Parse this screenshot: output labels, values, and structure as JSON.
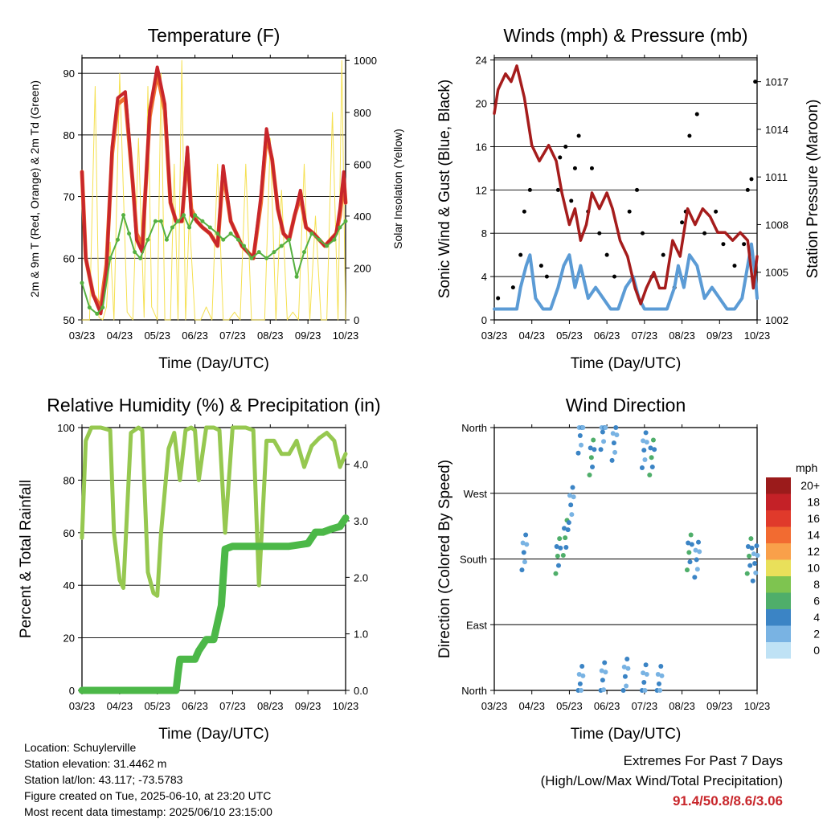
{
  "info": {
    "location": "Location: Schuylerville",
    "elevation": "Station elevation: 31.4462 m",
    "latlon": "Station lat/lon: 43.117; -73.5783",
    "created": "Figure created on Tue, 2025-06-10, at 23:20 UTC",
    "recent": "Most recent data timestamp: 2025/06/10 23:15:00"
  },
  "extremes": {
    "title": "Extremes For Past 7 Days",
    "subtitle": "(High/Low/Max Wind/Total Precipitation)",
    "values": "91.4/50.8/8.6/3.06"
  },
  "colors": {
    "temp2m": "#c8262b",
    "temp9m": "#f07030",
    "dewpoint": "#55b040",
    "solar": "#f5e050",
    "gust": "#000000",
    "wind": "#5b9bd5",
    "pressure": "#a51c1c",
    "rh": "#96c850",
    "rain": "#4cb848"
  },
  "chart_data": [
    {
      "type": "line",
      "title": "Temperature (F)",
      "xlabel": "Time (Day/UTC)",
      "ylabel": "2m & 9m T (Red, Orange) & 2m Td (Green)",
      "y2label": "Solar Insolation (Yellow)",
      "x_ticks": [
        "03/23",
        "04/23",
        "05/23",
        "06/23",
        "07/23",
        "08/23",
        "09/23",
        "10/23"
      ],
      "y_ticks": [
        50,
        60,
        70,
        80,
        90
      ],
      "y2_ticks": [
        0,
        200,
        400,
        600,
        800,
        1000
      ],
      "ylim": [
        50,
        92.5
      ],
      "y2lim": [
        0,
        1010
      ],
      "xlim": [
        0,
        7
      ],
      "grid": true,
      "series": [
        {
          "key": "temp2m",
          "x": [
            0,
            0.1,
            0.3,
            0.5,
            0.65,
            0.8,
            0.95,
            1.15,
            1.35,
            1.45,
            1.6,
            1.8,
            2.0,
            2.2,
            2.35,
            2.5,
            2.65,
            2.8,
            2.9,
            3.05,
            3.2,
            3.4,
            3.6,
            3.75,
            3.95,
            4.1,
            4.25,
            4.4,
            4.55,
            4.75,
            4.9,
            5.05,
            5.2,
            5.35,
            5.5,
            5.65,
            5.8,
            5.95,
            6.15,
            6.3,
            6.45,
            6.6,
            6.75,
            6.85,
            6.95,
            7.0
          ],
          "y": [
            74,
            60,
            54,
            51,
            58,
            78,
            86,
            87,
            72,
            63,
            61,
            84,
            91,
            85,
            69,
            66,
            66,
            78,
            67,
            66,
            65,
            64,
            62,
            75,
            66,
            64,
            62,
            61,
            60,
            70,
            81,
            76,
            68,
            64,
            63,
            67,
            71,
            65,
            64,
            63,
            62,
            63,
            64,
            68,
            74,
            69
          ]
        },
        {
          "key": "temp9m",
          "x": [
            0,
            0.1,
            0.3,
            0.5,
            0.65,
            0.8,
            0.95,
            1.15,
            1.35,
            1.45,
            1.6,
            1.8,
            2.0,
            2.2,
            2.35,
            2.5,
            2.65,
            2.8,
            2.9,
            3.05,
            3.2,
            3.4,
            3.6,
            3.75,
            3.95,
            4.1,
            4.25,
            4.4,
            4.55,
            4.75,
            4.9,
            5.05,
            5.2,
            5.35,
            5.5,
            5.65,
            5.8,
            5.95,
            6.15,
            6.3,
            6.45,
            6.6,
            6.75,
            6.85,
            6.95,
            7.0
          ],
          "y": [
            74,
            60,
            54,
            52,
            59,
            77,
            85,
            86,
            72,
            64,
            62,
            83,
            90,
            84,
            69,
            66,
            66,
            77,
            68,
            66,
            65,
            64,
            62,
            74,
            66,
            64,
            62,
            61,
            60,
            69,
            80,
            76,
            68,
            64,
            63,
            67,
            70,
            65,
            64,
            63,
            62,
            63,
            64,
            67,
            73,
            69
          ]
        },
        {
          "key": "dewpoint",
          "x": [
            0,
            0.2,
            0.4,
            0.55,
            0.75,
            0.95,
            1.1,
            1.25,
            1.4,
            1.55,
            1.75,
            1.95,
            2.1,
            2.25,
            2.4,
            2.55,
            2.7,
            2.85,
            3.0,
            3.2,
            3.4,
            3.6,
            3.75,
            3.95,
            4.15,
            4.3,
            4.5,
            4.7,
            4.9,
            5.1,
            5.3,
            5.5,
            5.7,
            5.9,
            6.1,
            6.3,
            6.5,
            6.7,
            6.85,
            7.0
          ],
          "y": [
            56,
            52,
            51,
            52,
            60,
            63,
            67,
            64,
            61,
            60,
            63,
            66,
            66,
            63,
            65,
            66,
            67,
            65,
            67,
            66,
            65,
            64,
            63,
            64,
            63,
            62,
            60,
            61,
            60,
            61,
            62,
            63,
            57,
            61,
            64,
            63,
            62,
            63,
            65,
            66
          ]
        },
        {
          "key": "solar",
          "x": [
            0,
            0.2,
            0.35,
            0.45,
            0.55,
            0.65,
            0.75,
            0.85,
            1.0,
            1.2,
            1.35,
            1.5,
            1.65,
            1.75,
            1.85,
            2.0,
            2.1,
            2.2,
            2.35,
            2.45,
            2.55,
            2.65,
            2.75,
            2.85,
            3.0,
            3.15,
            3.3,
            3.45,
            3.6,
            3.75,
            3.9,
            4.05,
            4.2,
            4.35,
            4.5,
            4.7,
            4.85,
            5.0,
            5.15,
            5.3,
            5.45,
            5.6,
            5.75,
            5.9,
            6.05,
            6.2,
            6.35,
            6.5,
            6.65,
            6.8,
            6.9,
            7.0
          ],
          "y": [
            0,
            0,
            900,
            10,
            0,
            50,
            300,
            0,
            950,
            30,
            0,
            700,
            10,
            900,
            50,
            0,
            950,
            0,
            0,
            600,
            0,
            1000,
            0,
            400,
            0,
            0,
            50,
            0,
            600,
            0,
            0,
            30,
            0,
            600,
            0,
            0,
            0,
            700,
            0,
            500,
            0,
            30,
            0,
            600,
            0,
            400,
            0,
            0,
            800,
            0,
            1000,
            0
          ]
        }
      ]
    },
    {
      "type": "line",
      "title": "Winds (mph) & Pressure (mb)",
      "xlabel": "Time (Day/UTC)",
      "ylabel": "Sonic Wind & Gust (Blue, Black)",
      "y2label": "Station Pressure (Maroon)",
      "x_ticks": [
        "03/23",
        "04/23",
        "05/23",
        "06/23",
        "07/23",
        "08/23",
        "09/23",
        "10/23"
      ],
      "y_ticks": [
        0,
        4,
        8,
        12,
        16,
        20,
        24
      ],
      "y2_ticks": [
        1002,
        1005,
        1008,
        1011,
        1014,
        1017
      ],
      "ylim": [
        0,
        24.2
      ],
      "y2lim": [
        1002,
        1018.5
      ],
      "xlim": [
        0,
        7
      ],
      "grid": true,
      "series": [
        {
          "key": "pressure",
          "x": [
            0,
            0.1,
            0.3,
            0.45,
            0.6,
            0.8,
            1.0,
            1.2,
            1.45,
            1.65,
            1.8,
            2.0,
            2.15,
            2.3,
            2.45,
            2.6,
            2.8,
            3.0,
            3.15,
            3.35,
            3.55,
            3.75,
            3.9,
            4.05,
            4.25,
            4.4,
            4.55,
            4.75,
            4.95,
            5.15,
            5.35,
            5.55,
            5.75,
            5.95,
            6.15,
            6.35,
            6.55,
            6.75,
            6.9,
            7.0
          ],
          "y": [
            1015,
            1016.5,
            1017.5,
            1017,
            1018,
            1016,
            1013,
            1012,
            1013,
            1012,
            1010,
            1008,
            1009,
            1007,
            1008,
            1010,
            1009,
            1010,
            1009,
            1007,
            1006,
            1004,
            1003,
            1004,
            1005,
            1004,
            1004,
            1007,
            1006,
            1009,
            1008,
            1009,
            1008.5,
            1007.5,
            1007.5,
            1007,
            1007.5,
            1007,
            1004,
            1006
          ]
        },
        {
          "key": "gust",
          "type": "scatter",
          "x": [
            0.1,
            0.5,
            0.7,
            0.8,
            0.95,
            1.25,
            1.4,
            1.7,
            1.75,
            1.9,
            2.05,
            2.15,
            2.25,
            2.5,
            2.6,
            2.8,
            3.0,
            3.2,
            3.6,
            3.8,
            3.95,
            4.2,
            4.5,
            4.8,
            5.0,
            5.1,
            5.2,
            5.4,
            5.6,
            5.9,
            6.1,
            6.4,
            6.65,
            6.75,
            6.85,
            6.95
          ],
          "y": [
            2,
            3,
            6,
            10,
            12,
            5,
            4,
            12,
            15,
            16,
            11,
            14,
            17,
            10,
            14,
            8,
            6,
            4,
            10,
            12,
            8,
            4,
            6,
            3,
            9,
            10,
            17,
            19,
            8,
            10,
            7,
            5,
            7,
            12,
            13,
            22
          ]
        },
        {
          "key": "wind",
          "x": [
            0,
            0.2,
            0.4,
            0.6,
            0.7,
            0.85,
            0.95,
            1.1,
            1.3,
            1.5,
            1.7,
            1.85,
            2.0,
            2.15,
            2.3,
            2.5,
            2.7,
            2.9,
            3.1,
            3.3,
            3.5,
            3.7,
            3.85,
            4.0,
            4.2,
            4.4,
            4.6,
            4.8,
            4.9,
            5.05,
            5.2,
            5.4,
            5.6,
            5.8,
            6.0,
            6.2,
            6.4,
            6.6,
            6.75,
            6.85,
            6.95,
            7.0
          ],
          "y": [
            1,
            1,
            1,
            1,
            3,
            5,
            6,
            2,
            1,
            1,
            3,
            5,
            6,
            3,
            5,
            2,
            3,
            2,
            1,
            1,
            3,
            4,
            2,
            1,
            1,
            1,
            1,
            3,
            5,
            3,
            6,
            5,
            2,
            3,
            2,
            1,
            1,
            2,
            5,
            7,
            4,
            2
          ]
        }
      ]
    },
    {
      "type": "line",
      "title": "Relative Humidity (%) & Precipitation (in)",
      "xlabel": "Time (Day/UTC)",
      "ylabel": "Percent & Total Rainfall",
      "x_ticks": [
        "03/23",
        "04/23",
        "05/23",
        "06/23",
        "07/23",
        "08/23",
        "09/23",
        "10/23"
      ],
      "y_ticks": [
        0,
        20,
        40,
        60,
        80,
        100
      ],
      "y2_ticks": [
        "0.0",
        "1.0",
        "2.0",
        "3.0",
        "4.0"
      ],
      "ylim": [
        0,
        100
      ],
      "y2lim": [
        0,
        4.65
      ],
      "xlim": [
        0,
        7
      ],
      "grid": true,
      "series": [
        {
          "key": "rh",
          "x": [
            0,
            0.1,
            0.25,
            0.5,
            0.75,
            0.85,
            1.0,
            1.1,
            1.3,
            1.5,
            1.6,
            1.75,
            1.9,
            2.0,
            2.1,
            2.3,
            2.45,
            2.6,
            2.75,
            2.9,
            3.0,
            3.1,
            3.3,
            3.5,
            3.65,
            3.8,
            4.0,
            4.15,
            4.35,
            4.55,
            4.7,
            4.9,
            5.1,
            5.3,
            5.5,
            5.7,
            5.9,
            6.1,
            6.3,
            6.5,
            6.7,
            6.85,
            7.0
          ],
          "y": [
            58,
            95,
            100,
            100,
            99,
            60,
            42,
            39,
            98,
            100,
            99,
            45,
            37,
            36,
            60,
            92,
            98,
            80,
            99,
            100,
            99,
            80,
            100,
            100,
            99,
            60,
            100,
            100,
            100,
            99,
            40,
            95,
            95,
            90,
            90,
            95,
            85,
            93,
            96,
            98,
            95,
            85,
            90
          ]
        },
        {
          "key": "rain",
          "x": [
            0,
            0.5,
            1.0,
            1.5,
            2.0,
            2.5,
            2.55,
            2.6,
            2.75,
            3.0,
            3.1,
            3.3,
            3.4,
            3.5,
            3.7,
            3.8,
            4.0,
            4.5,
            5.0,
            5.5,
            6.0,
            6.2,
            6.4,
            6.6,
            6.85,
            7.0
          ],
          "y": [
            0,
            0,
            0,
            0,
            0,
            0,
            0.3,
            0.55,
            0.55,
            0.55,
            0.7,
            0.9,
            0.9,
            0.9,
            1.5,
            2.5,
            2.55,
            2.55,
            2.55,
            2.55,
            2.6,
            2.8,
            2.8,
            2.85,
            2.9,
            3.05
          ]
        }
      ]
    },
    {
      "type": "scatter",
      "title": "Wind Direction",
      "xlabel": "Time (Day/UTC)",
      "ylabel": "Direction (Colored By Speed)",
      "x_ticks": [
        "03/23",
        "04/23",
        "05/23",
        "06/23",
        "07/23",
        "08/23",
        "09/23",
        "10/23"
      ],
      "y_ticks": [
        "North",
        "East",
        "South",
        "West",
        "North"
      ],
      "ylim": [
        0,
        360
      ],
      "xlim": [
        0,
        7
      ],
      "grid": true,
      "legend": {
        "title": "mph",
        "labels": [
          "20+",
          "18",
          "16",
          "14",
          "12",
          "10",
          "8",
          "6",
          "4",
          "2",
          "0"
        ],
        "colors": [
          "#9b1b1b",
          "#c42127",
          "#e03a2b",
          "#f26b31",
          "#f9a04a",
          "#e9e05a",
          "#7ec450",
          "#4fae6a",
          "#3b84c5",
          "#79b3e3",
          "#bfe2f5"
        ]
      },
      "clusters": [
        {
          "x": 0.8,
          "y": 190,
          "s": 4
        },
        {
          "x": 1.7,
          "y": 185,
          "s": 6
        },
        {
          "x": 1.9,
          "y": 210,
          "s": 5
        },
        {
          "x": 2.05,
          "y": 255,
          "s": 4
        },
        {
          "x": 2.3,
          "y": 350,
          "s": 4
        },
        {
          "x": 2.6,
          "y": 320,
          "s": 5
        },
        {
          "x": 2.9,
          "y": 355,
          "s": 4
        },
        {
          "x": 3.2,
          "y": 340,
          "s": 3
        },
        {
          "x": 4.0,
          "y": 330,
          "s": 4
        },
        {
          "x": 4.2,
          "y": 320,
          "s": 5
        },
        {
          "x": 5.2,
          "y": 190,
          "s": 6
        },
        {
          "x": 5.4,
          "y": 180,
          "s": 4
        },
        {
          "x": 6.8,
          "y": 185,
          "s": 6
        },
        {
          "x": 6.95,
          "y": 175,
          "s": 4
        },
        {
          "x": 2.3,
          "y": 10,
          "s": 3
        },
        {
          "x": 2.9,
          "y": 15,
          "s": 3
        },
        {
          "x": 3.5,
          "y": 20,
          "s": 3
        },
        {
          "x": 4.0,
          "y": 12,
          "s": 4
        },
        {
          "x": 4.4,
          "y": 10,
          "s": 3
        }
      ]
    }
  ]
}
